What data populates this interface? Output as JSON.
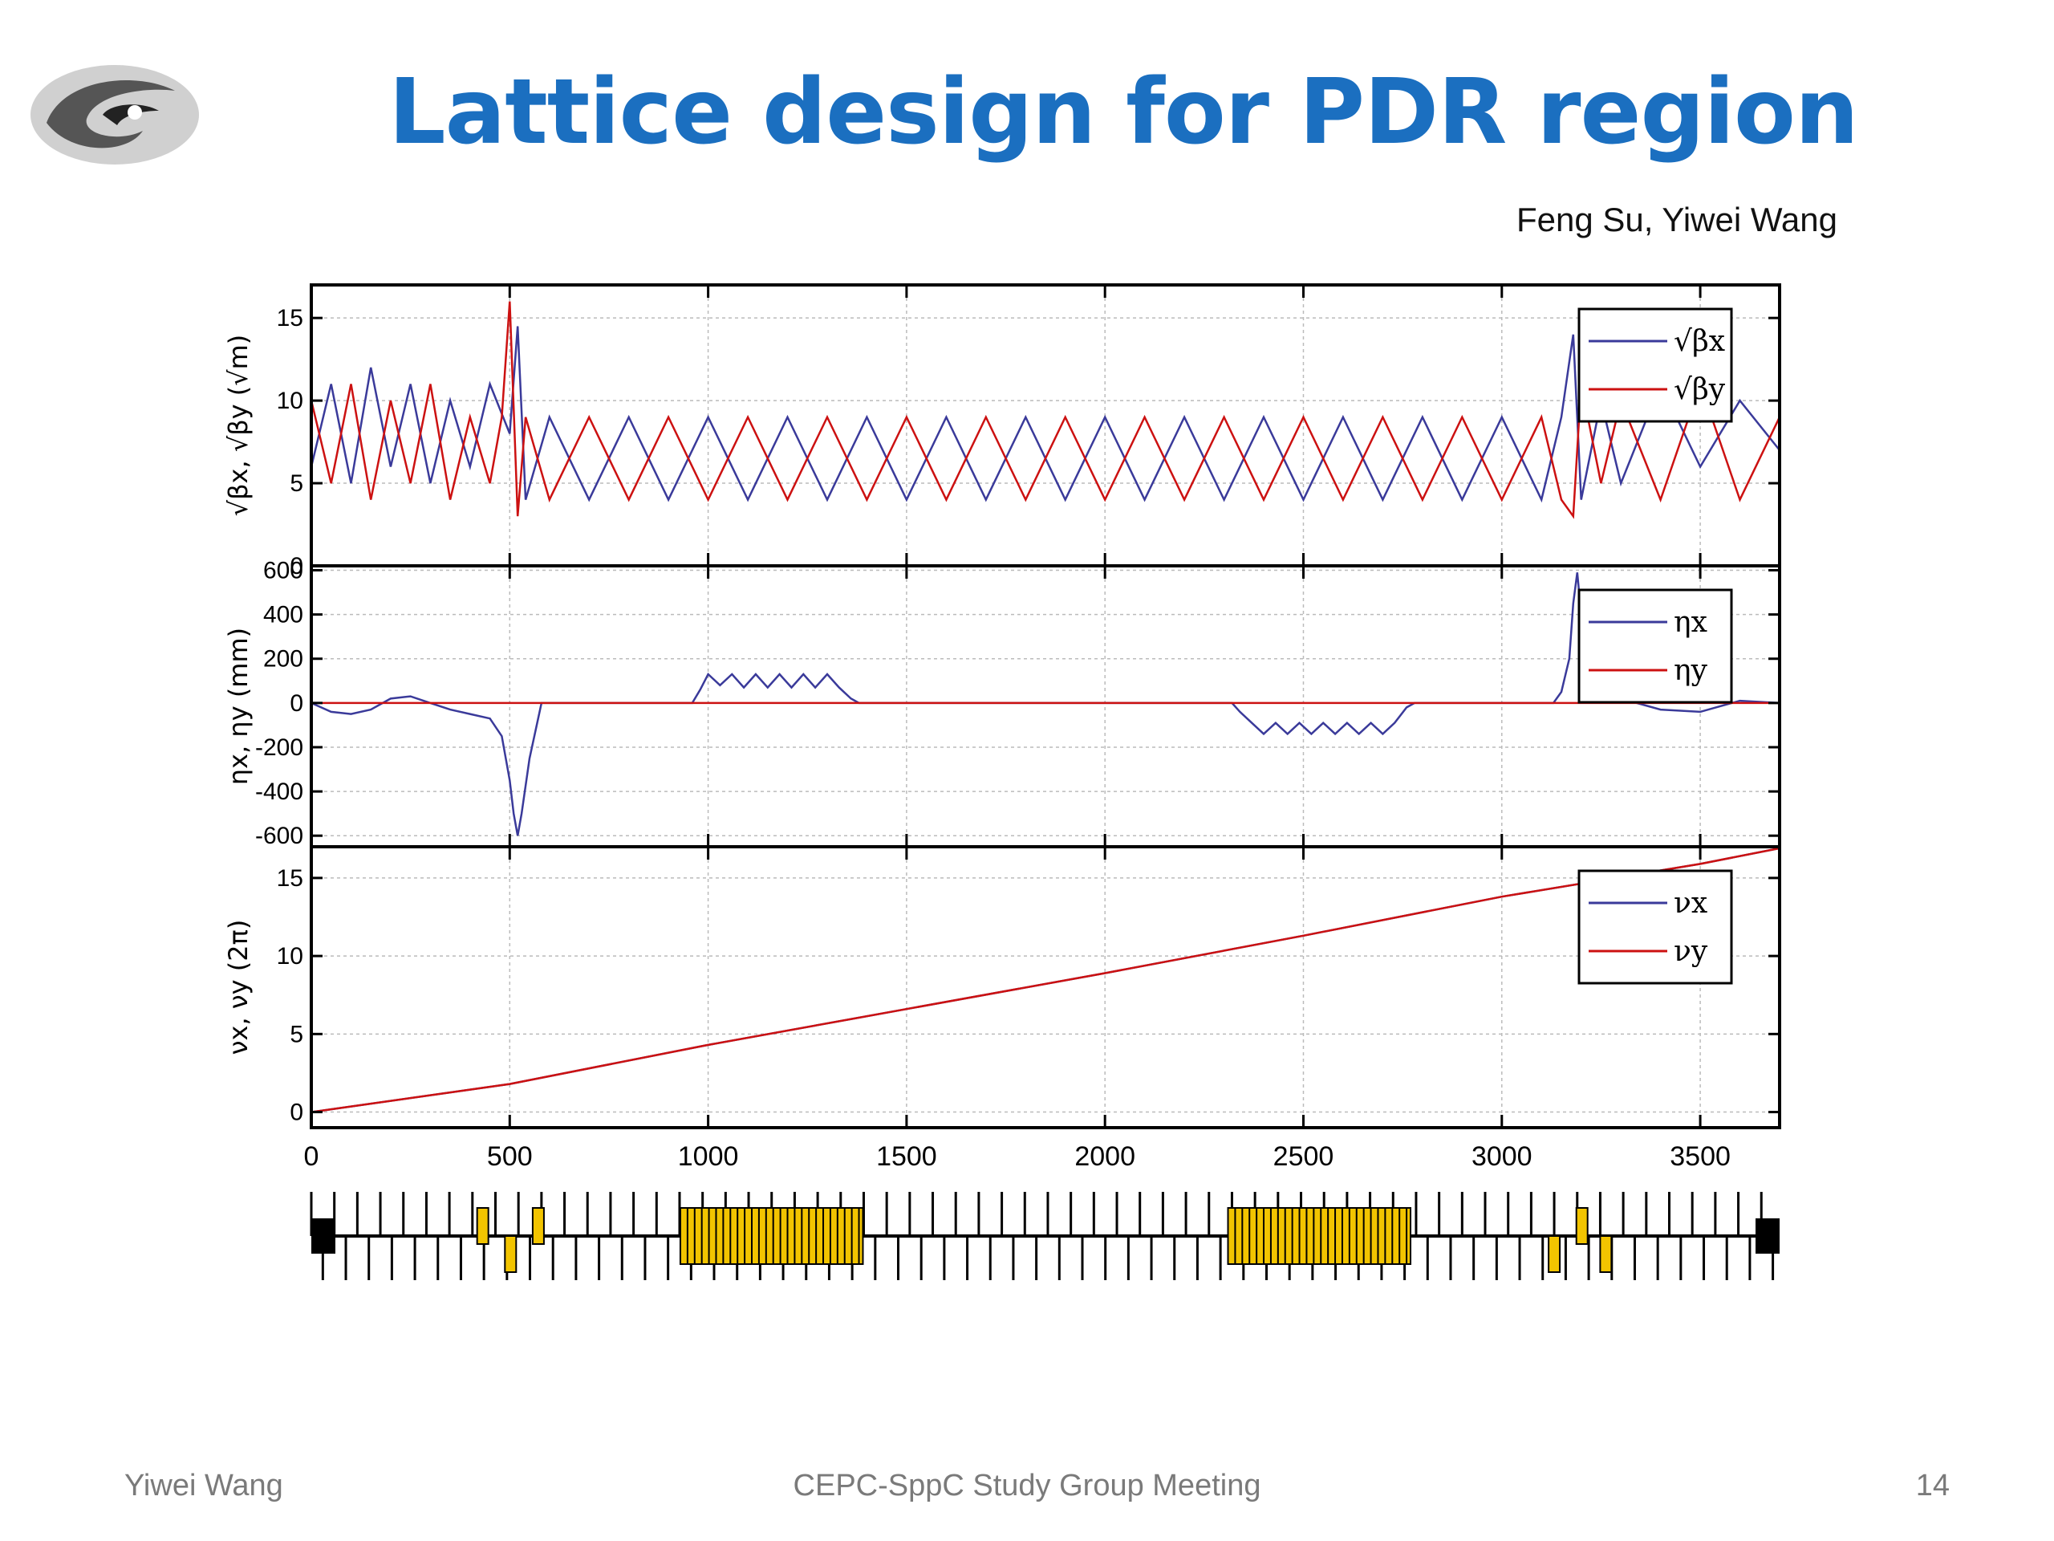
{
  "slide": {
    "title": "Lattice design for PDR region",
    "authors": "Feng Su, Yiwei Wang",
    "footer_left": "Yiwei Wang",
    "footer_center": "CEPC-SppC Study Group Meeting",
    "page_number": "14",
    "title_color": "#1b6fc0",
    "logo": "institute-logo-swirl"
  },
  "chart_data": [
    {
      "type": "line",
      "panel": "beta",
      "ylabel": "√βx, √βy (√m)",
      "ylim": [
        0,
        17
      ],
      "yticks": [
        0,
        5,
        10,
        15
      ],
      "legend": [
        "√βx",
        "√βy"
      ],
      "legend_position": "top-right",
      "grid": true,
      "series": [
        {
          "name": "√βx",
          "color": "#3a3a9a",
          "x": [
            0,
            50,
            100,
            150,
            200,
            250,
            300,
            350,
            400,
            450,
            500,
            520,
            540,
            600,
            700,
            800,
            900,
            1000,
            1100,
            1200,
            1300,
            1400,
            1500,
            1600,
            1700,
            1800,
            1900,
            2000,
            2100,
            2200,
            2300,
            2400,
            2500,
            2600,
            2700,
            2800,
            2900,
            3000,
            3100,
            3150,
            3180,
            3200,
            3250,
            3300,
            3400,
            3500,
            3600,
            3700
          ],
          "y": [
            6,
            11,
            5,
            12,
            6,
            11,
            5,
            10,
            6,
            11,
            8,
            14.5,
            4,
            9,
            4,
            9,
            4,
            9,
            4,
            9,
            4,
            9,
            4,
            9,
            4,
            9,
            4,
            9,
            4,
            9,
            4,
            9,
            4,
            9,
            4,
            9,
            4,
            9,
            4,
            9,
            14,
            4,
            10,
            5,
            11,
            6,
            10,
            7
          ]
        },
        {
          "name": "√βy",
          "color": "#cc1111",
          "x": [
            0,
            50,
            100,
            150,
            200,
            250,
            300,
            350,
            400,
            450,
            480,
            500,
            520,
            540,
            600,
            700,
            800,
            900,
            1000,
            1100,
            1200,
            1300,
            1400,
            1500,
            1600,
            1700,
            1800,
            1900,
            2000,
            2100,
            2200,
            2300,
            2400,
            2500,
            2600,
            2700,
            2800,
            2900,
            3000,
            3100,
            3150,
            3180,
            3200,
            3250,
            3300,
            3400,
            3500,
            3600,
            3700
          ],
          "y": [
            10,
            5,
            11,
            4,
            10,
            5,
            11,
            4,
            9,
            5,
            9,
            16,
            3,
            9,
            4,
            9,
            4,
            9,
            4,
            9,
            4,
            9,
            4,
            9,
            4,
            9,
            4,
            9,
            4,
            9,
            4,
            9,
            4,
            9,
            4,
            9,
            4,
            9,
            4,
            9,
            4,
            3,
            11,
            5,
            10,
            4,
            11,
            4,
            9
          ]
        }
      ]
    },
    {
      "type": "line",
      "panel": "dispersion",
      "ylabel": "ηx, ηy (mm)",
      "ylim": [
        -650,
        620
      ],
      "yticks": [
        -600,
        -400,
        -200,
        0,
        200,
        400,
        600
      ],
      "legend": [
        "ηx",
        "ηy"
      ],
      "legend_position": "top-right",
      "grid": true,
      "series": [
        {
          "name": "ηx",
          "color": "#3a3a9a",
          "x": [
            0,
            50,
            100,
            150,
            200,
            250,
            300,
            350,
            400,
            450,
            480,
            500,
            510,
            520,
            530,
            550,
            580,
            960,
            980,
            1000,
            1030,
            1060,
            1090,
            1120,
            1150,
            1180,
            1210,
            1240,
            1270,
            1300,
            1330,
            1360,
            1380,
            2320,
            2340,
            2370,
            2400,
            2430,
            2460,
            2490,
            2520,
            2550,
            2580,
            2610,
            2640,
            2670,
            2700,
            2730,
            2760,
            2780,
            3130,
            3150,
            3170,
            3180,
            3190,
            3200,
            3220,
            3250,
            3300,
            3400,
            3500,
            3600,
            3700
          ],
          "y": [
            0,
            -40,
            -50,
            -30,
            20,
            30,
            0,
            -30,
            -50,
            -70,
            -150,
            -350,
            -500,
            -600,
            -500,
            -250,
            0,
            0,
            60,
            130,
            80,
            130,
            70,
            130,
            70,
            130,
            70,
            130,
            70,
            130,
            70,
            20,
            0,
            0,
            -40,
            -90,
            -140,
            -90,
            -140,
            -90,
            -140,
            -90,
            -140,
            -90,
            -140,
            -90,
            -140,
            -90,
            -20,
            0,
            0,
            50,
            200,
            450,
            590,
            400,
            150,
            30,
            20,
            -30,
            -40,
            10,
            0
          ]
        },
        {
          "name": "ηy",
          "color": "#cc1111",
          "x": [
            0,
            3700
          ],
          "y": [
            0,
            0
          ]
        }
      ]
    },
    {
      "type": "line",
      "panel": "tune",
      "ylabel": "νx, νy (2π)",
      "xlabel": "",
      "ylim": [
        -1,
        17
      ],
      "yticks": [
        0,
        5,
        10,
        15
      ],
      "xlim": [
        0,
        3700
      ],
      "xticks": [
        0,
        500,
        1000,
        1500,
        2000,
        2500,
        3000,
        3500
      ],
      "legend": [
        "νx",
        "νy"
      ],
      "legend_position": "top-right",
      "grid": true,
      "series": [
        {
          "name": "νx",
          "color": "#3a3a9a",
          "x": [
            0,
            500,
            1000,
            1500,
            2000,
            2500,
            3000,
            3500,
            3700
          ],
          "y": [
            0,
            1.8,
            4.3,
            6.6,
            8.9,
            11.3,
            13.8,
            15.9,
            16.9
          ]
        },
        {
          "name": "νy",
          "color": "#cc1111",
          "x": [
            0,
            500,
            1000,
            1500,
            2000,
            2500,
            3000,
            3500,
            3700
          ],
          "y": [
            0,
            1.8,
            4.3,
            6.6,
            8.9,
            11.3,
            13.8,
            15.9,
            16.9
          ]
        }
      ]
    }
  ],
  "lattice_layout": {
    "type": "element-strip",
    "dipole_color": "#f2c400",
    "dipole_blocks": [
      [
        930,
        1390
      ],
      [
        2310,
        2770
      ]
    ],
    "single_dipoles": [
      430,
      500,
      570,
      3130,
      3200,
      3260
    ],
    "end_blocks": [
      0,
      3700
    ]
  }
}
